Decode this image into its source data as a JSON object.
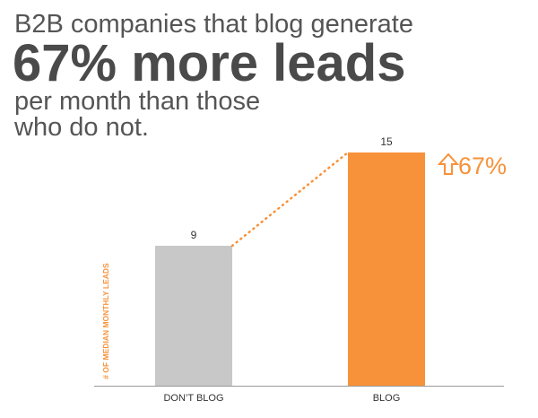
{
  "chart_data": {
    "type": "bar",
    "title": "B2B companies that blog generate",
    "headline": "67% more leads",
    "subtitle": [
      "per month than those",
      "who do not."
    ],
    "annotation": "67%",
    "y_label": "# OF MEDIAN MONTHLY LEADS",
    "categories": [
      "DON’T BLOG",
      "BLOG"
    ],
    "values": [
      9,
      15
    ],
    "colors": [
      "#c8c8c8",
      "#f7923a"
    ]
  }
}
